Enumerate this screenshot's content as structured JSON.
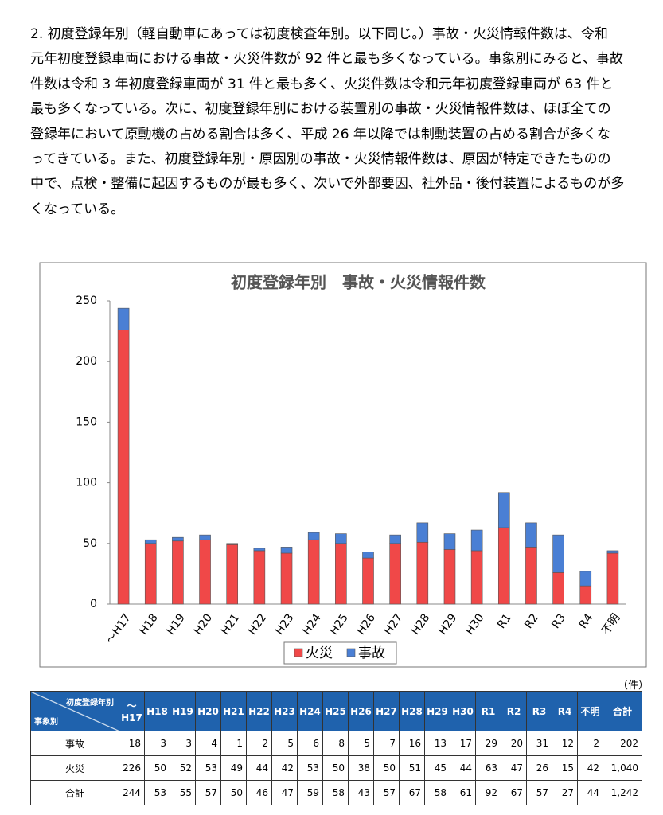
{
  "paragraph": {
    "lines": [
      "2. 初度登録年別（軽自動車にあっては初度検査年別。以下同じ。）事故・火災情報件数は、令和",
      "元年初度登録車両における事故・火災件数が 92 件と最も多くなっている。事象別にみると、事故",
      "件数は令和 3 年初度登録車両が 31 件と最も多く、火災件数は令和元年初度登録車両が 63 件と",
      "最も多くなっている。次に、初度登録年別における装置別の事故・火災情報件数は、ほぼ全ての",
      "登録年において原動機の占める割合は多く、平成 26 年以降では制動装置の占める割合が多くな",
      "ってきている。また、初度登録年別・原因別の事故・火災情報件数は、原因が特定できたものの",
      "中で、点検・整備に起因するものが最も多く、次いで外部要因、社外品・後付装置によるものが多",
      "くなっている。"
    ]
  },
  "chart_data": {
    "type": "stacked_bar",
    "title": "初度登録年別　事故・火災情報件数",
    "categories": [
      "～H17",
      "H18",
      "H19",
      "H20",
      "H21",
      "H22",
      "H23",
      "H24",
      "H25",
      "H26",
      "H27",
      "H28",
      "H29",
      "H30",
      "R1",
      "R2",
      "R3",
      "R4",
      "不明"
    ],
    "series": [
      {
        "name": "火災",
        "color": "#f04848",
        "values": [
          226,
          50,
          52,
          53,
          49,
          44,
          42,
          53,
          50,
          38,
          50,
          51,
          45,
          44,
          63,
          47,
          26,
          15,
          42
        ]
      },
      {
        "name": "事故",
        "color": "#4a7fd4",
        "values": [
          18,
          3,
          3,
          4,
          1,
          2,
          5,
          6,
          8,
          5,
          7,
          16,
          13,
          17,
          29,
          20,
          31,
          12,
          2
        ]
      }
    ],
    "ylim": [
      0,
      250
    ],
    "yticks": [
      0,
      50,
      100,
      150,
      200,
      250
    ],
    "grid": false,
    "legend": "bottom"
  },
  "table": {
    "unit": "（件）",
    "corner_top": "初度登録年別",
    "corner_bottom": "事象別",
    "columns": [
      "～H17",
      "H18",
      "H19",
      "H20",
      "H21",
      "H22",
      "H23",
      "H24",
      "H25",
      "H26",
      "H27",
      "H28",
      "H29",
      "H30",
      "R1",
      "R2",
      "R3",
      "R4",
      "不明",
      "合計"
    ],
    "rows": [
      {
        "label": "事故",
        "cells": [
          18,
          3,
          3,
          4,
          1,
          2,
          5,
          6,
          8,
          5,
          7,
          16,
          13,
          17,
          29,
          20,
          31,
          12,
          2,
          202
        ]
      },
      {
        "label": "火災",
        "cells": [
          226,
          50,
          52,
          53,
          49,
          44,
          42,
          53,
          50,
          38,
          50,
          51,
          45,
          44,
          63,
          47,
          26,
          15,
          42,
          "1,040"
        ]
      },
      {
        "label": "合計",
        "cells": [
          244,
          53,
          55,
          57,
          50,
          46,
          47,
          59,
          58,
          43,
          57,
          67,
          58,
          61,
          92,
          67,
          57,
          27,
          44,
          "1,242"
        ]
      }
    ]
  }
}
